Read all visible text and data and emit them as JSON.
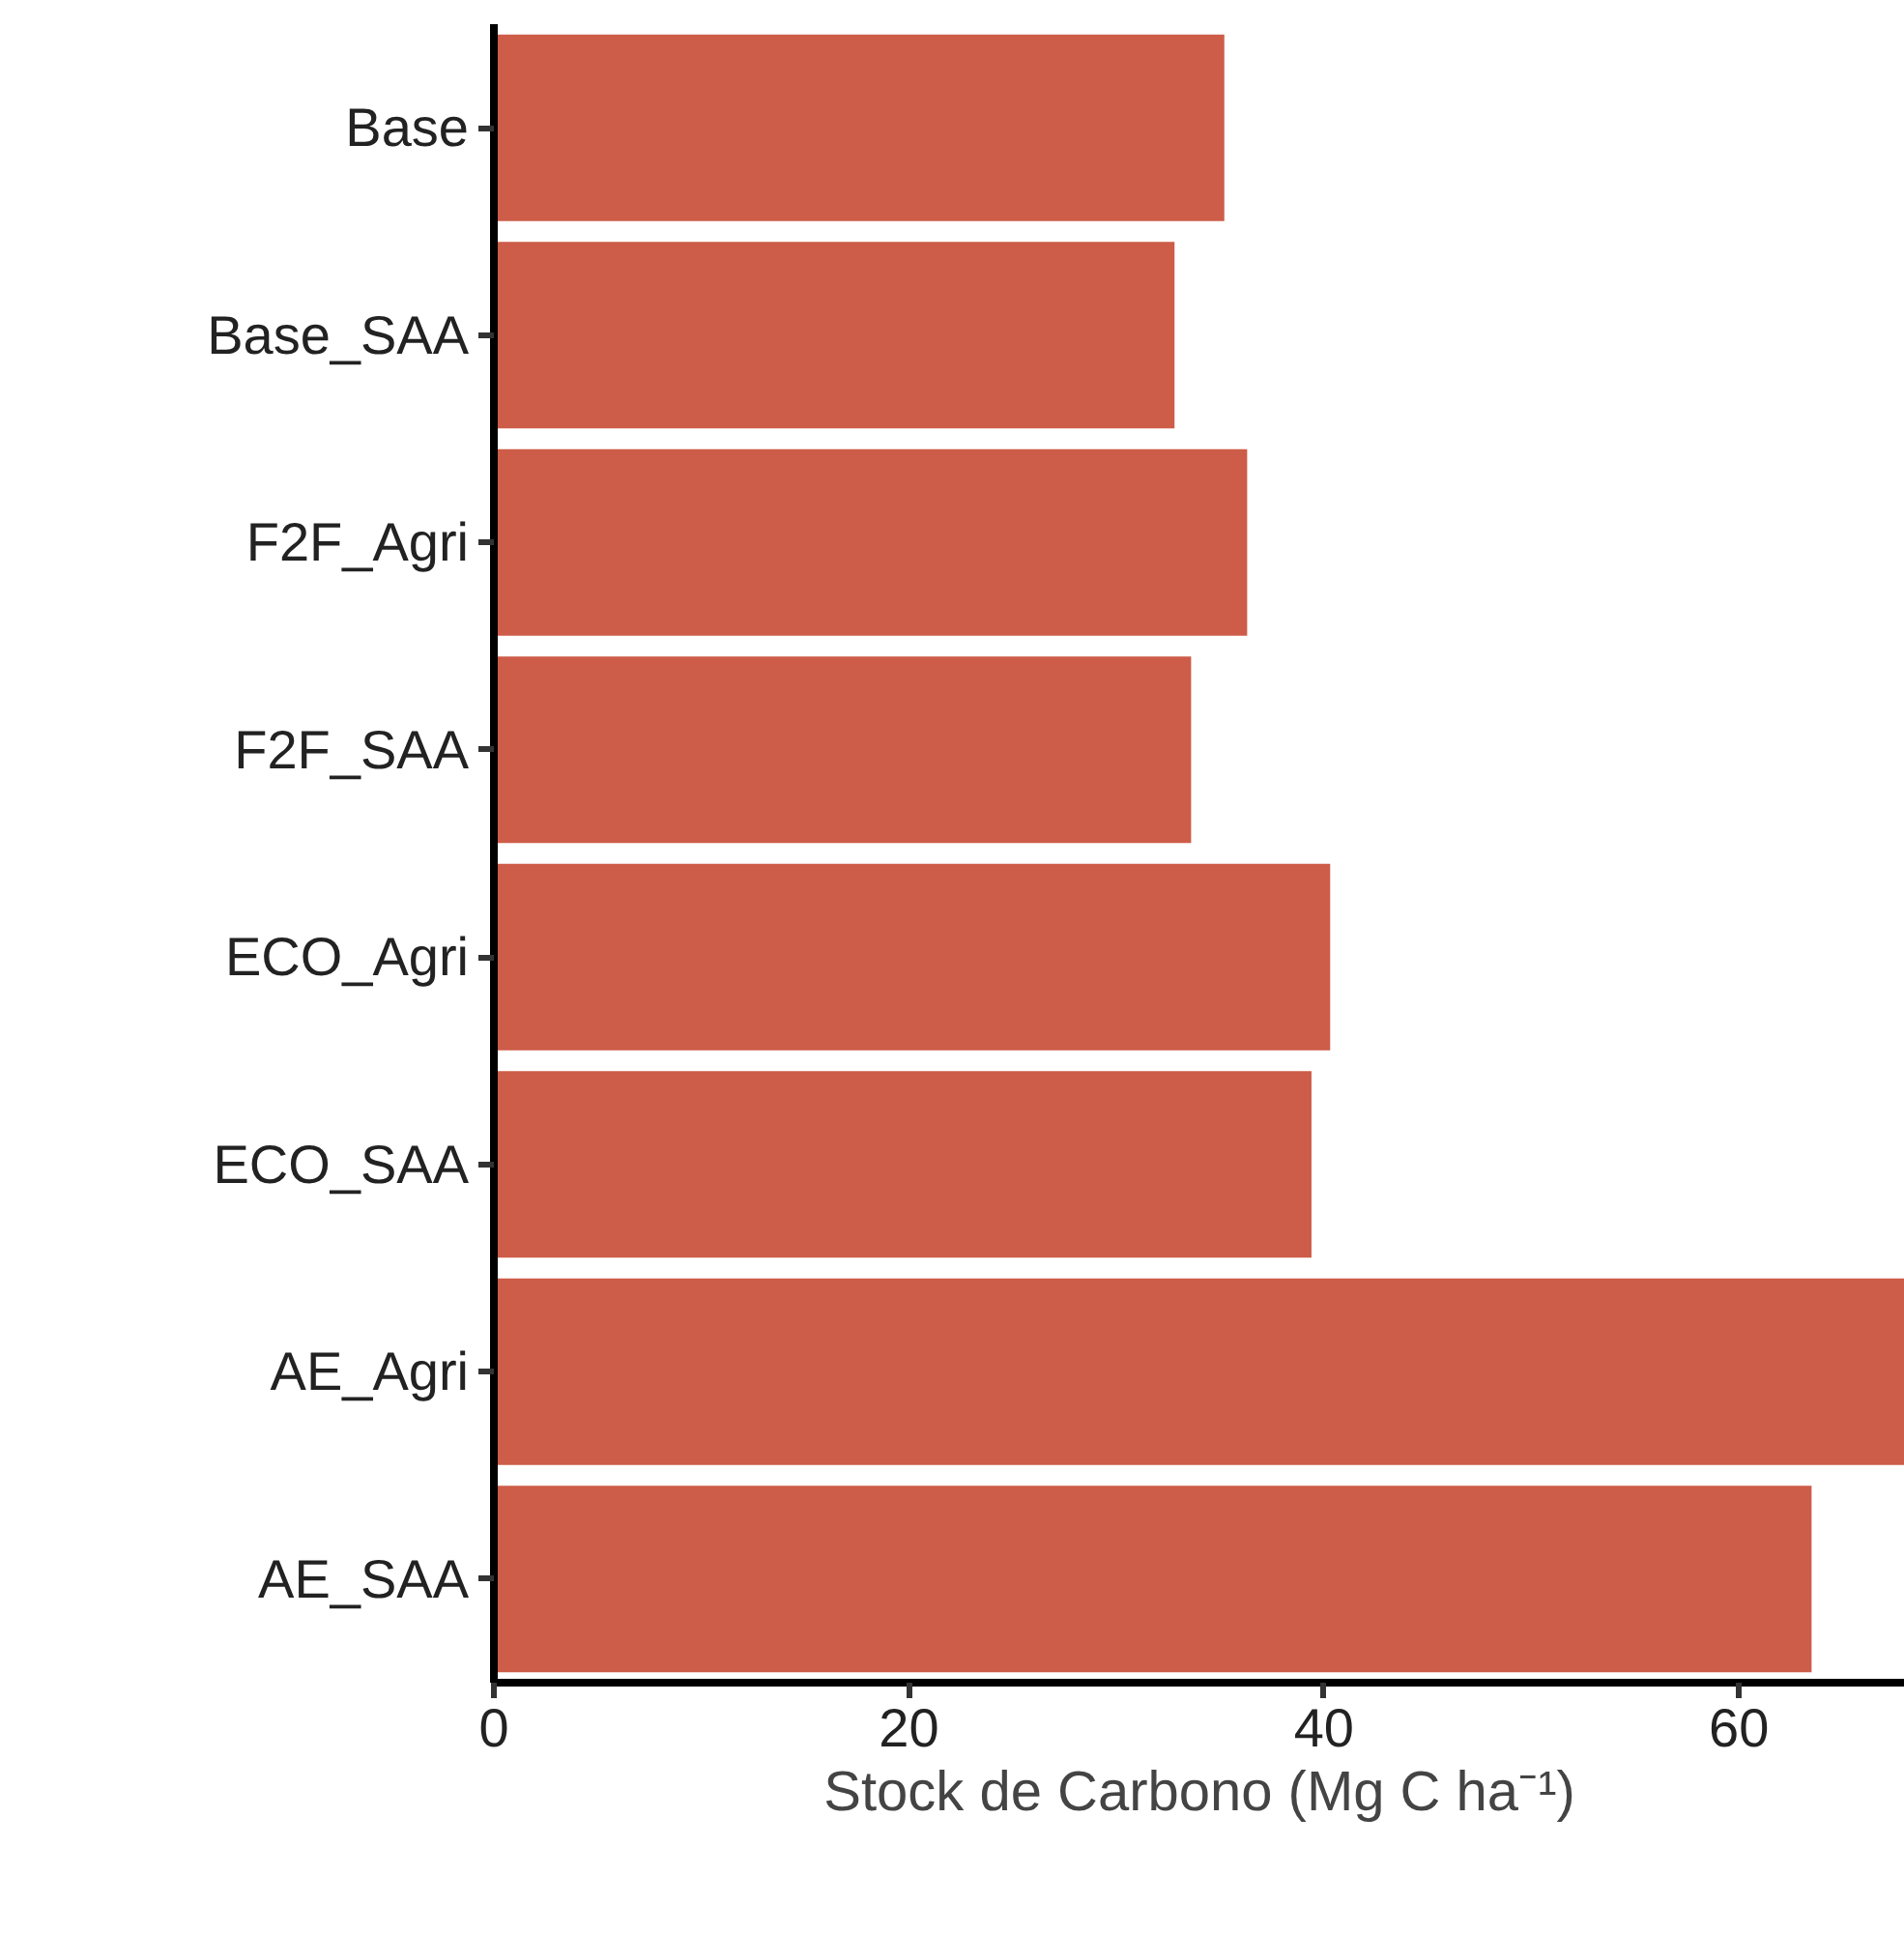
{
  "chart_data": {
    "type": "bar",
    "orientation": "horizontal",
    "xlabel": "Stock de Carbono (Mg C ha⁻¹)",
    "categories": [
      "Base",
      "Base_SAA",
      "F2F_Agri",
      "F2F_SAA",
      "ECO_Agri",
      "ECO_SAA",
      "AE_Agri",
      "AE_SAA"
    ],
    "values": [
      35.2,
      32.8,
      36.3,
      33.6,
      40.3,
      39.4,
      68,
      63.5
    ],
    "color": "#cd5c48",
    "xlim": [
      0,
      68
    ],
    "xticks": [
      0,
      20,
      40,
      60
    ],
    "grid": false
  }
}
